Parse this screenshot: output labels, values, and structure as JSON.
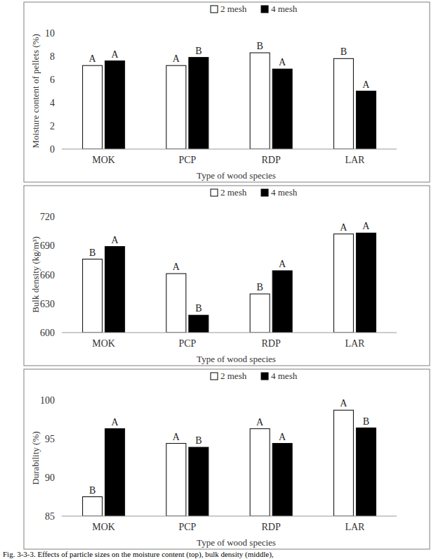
{
  "chart_data": [
    {
      "type": "bar",
      "y_label": "Moisture content of pellets (%)",
      "x_label": "Type of wood species",
      "categories": [
        "MOK",
        "PCP",
        "RDP",
        "LAR"
      ],
      "series": [
        {
          "name": "2 mesh",
          "color": "#ffffff",
          "values": [
            7.2,
            7.2,
            8.3,
            7.8
          ],
          "letters": [
            "A",
            "A",
            "B",
            "B"
          ]
        },
        {
          "name": "4 mesh",
          "color": "#000000",
          "values": [
            7.6,
            7.9,
            6.9,
            5.0
          ],
          "letters": [
            "A",
            "B",
            "A",
            "A"
          ]
        }
      ],
      "ylim": [
        0,
        10
      ],
      "yticks": [
        0,
        2,
        4,
        6,
        8,
        10
      ],
      "grid": false,
      "legend": "top"
    },
    {
      "type": "bar",
      "y_label": "Bulk density (kg/m³)",
      "x_label": "Type of wood species",
      "categories": [
        "MOK",
        "PCP",
        "RDP",
        "LAR"
      ],
      "series": [
        {
          "name": "2 mesh",
          "color": "#ffffff",
          "values": [
            676,
            661,
            640,
            702
          ],
          "letters": [
            "B",
            "A",
            "B",
            "A"
          ]
        },
        {
          "name": "4 mesh",
          "color": "#000000",
          "values": [
            689,
            618,
            664,
            703
          ],
          "letters": [
            "A",
            "B",
            "A",
            "A"
          ]
        }
      ],
      "ylim": [
        600,
        720
      ],
      "yticks": [
        600,
        630,
        660,
        690,
        720
      ],
      "grid": false,
      "legend": "top"
    },
    {
      "type": "bar",
      "y_label": "Durability (%)",
      "x_label": "Type of wood species",
      "categories": [
        "MOK",
        "PCP",
        "RDP",
        "LAR"
      ],
      "series": [
        {
          "name": "2 mesh",
          "color": "#ffffff",
          "values": [
            87.5,
            94.4,
            96.3,
            98.7
          ],
          "letters": [
            "B",
            "A",
            "A",
            "A"
          ]
        },
        {
          "name": "4 mesh",
          "color": "#000000",
          "values": [
            96.3,
            93.9,
            94.4,
            96.4
          ],
          "letters": [
            "A",
            "B",
            "A",
            "B"
          ]
        }
      ],
      "ylim": [
        85,
        100
      ],
      "yticks": [
        85,
        90,
        95,
        100
      ],
      "grid": false,
      "legend": "top"
    }
  ],
  "caption": "Fig. 3-3-3. Effects of particle sizes on the moisture content (top), bulk density (middle),"
}
